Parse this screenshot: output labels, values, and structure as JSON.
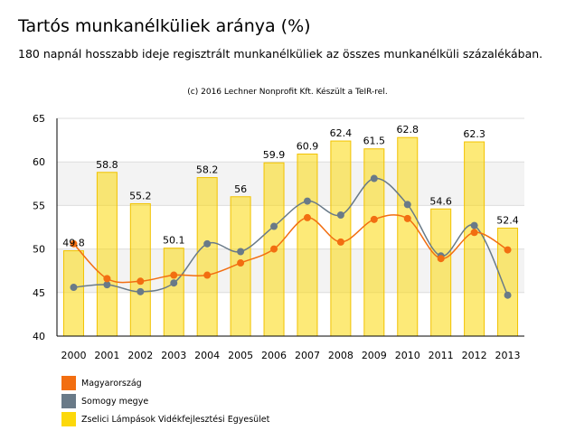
{
  "chart_data": {
    "type": "bar",
    "title": "Tartós munkanélküliek aránya (%)",
    "subtitle": "180 napnál hosszabb ideje regisztrált munkanélküliek az összes munkanélküli százalékában.",
    "credit": "(c) 2016 Lechner Nonprofit Kft. Készült a TeIR-rel.",
    "categories": [
      "2000",
      "2001",
      "2002",
      "2003",
      "2004",
      "2005",
      "2006",
      "2007",
      "2008",
      "2009",
      "2010",
      "2011",
      "2012",
      "2013"
    ],
    "ylim": [
      40,
      65
    ],
    "yticks": [
      "40",
      "45",
      "50",
      "55",
      "60",
      "65"
    ],
    "grid": true,
    "legend_position": "bottom-left",
    "series": [
      {
        "name": "Magyarország",
        "type": "line",
        "color": "#f26e11",
        "values": [
          50.6,
          46.6,
          46.3,
          47.0,
          47.0,
          48.4,
          50.0,
          53.6,
          50.8,
          53.4,
          53.5,
          48.9,
          51.9,
          49.9
        ]
      },
      {
        "name": "Somogy megye",
        "type": "line",
        "color": "#697a88",
        "values": [
          45.6,
          45.9,
          45.1,
          46.1,
          50.6,
          49.7,
          52.6,
          55.5,
          53.9,
          58.1,
          55.1,
          49.2,
          52.7,
          44.7
        ]
      },
      {
        "name": "Zselici Lámpások Vidékfejlesztési Egyesület",
        "type": "bar",
        "color": "#fcd80a",
        "values": [
          49.8,
          58.8,
          55.2,
          50.1,
          58.2,
          56,
          59.9,
          60.9,
          62.4,
          61.5,
          62.8,
          54.6,
          62.3,
          52.4
        ],
        "labels": [
          "49.8",
          "58.8",
          "55.2",
          "50.1",
          "58.2",
          "56",
          "59.9",
          "60.9",
          "62.4",
          "61.5",
          "62.8",
          "54.6",
          "62.3",
          "52.4"
        ]
      }
    ]
  }
}
